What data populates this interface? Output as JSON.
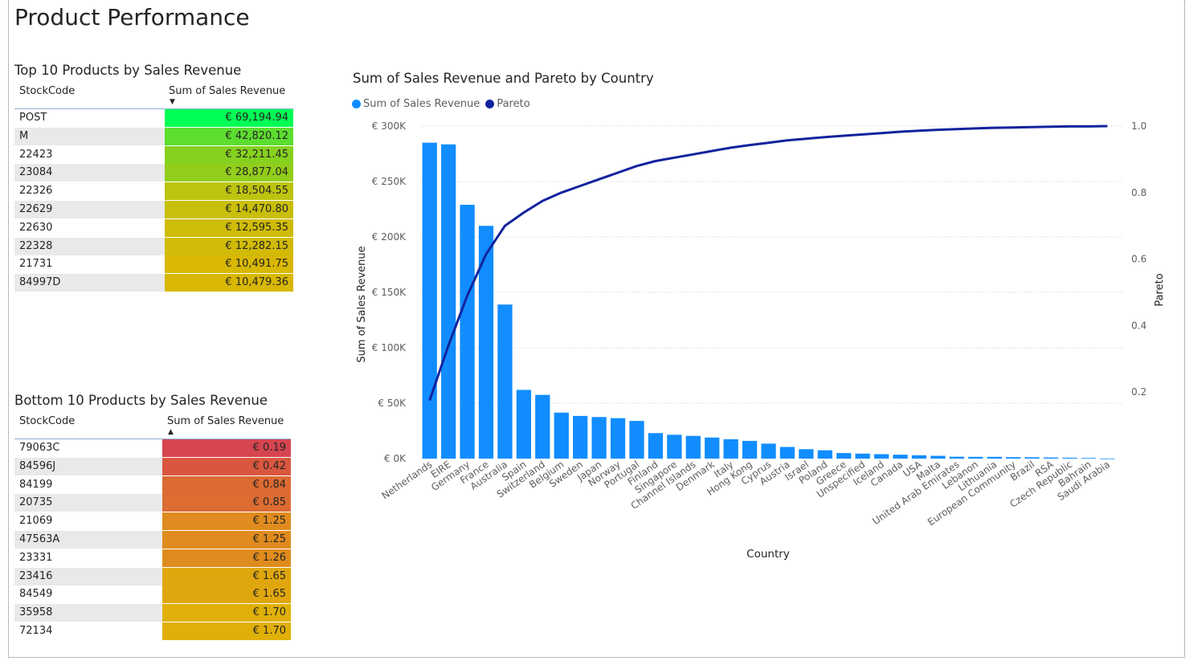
{
  "page": {
    "title": "Product Performance"
  },
  "top_table": {
    "title": "Top 10 Products by Sales Revenue",
    "col1": "StockCode",
    "col2": "Sum of Sales Revenue",
    "sort": "descending",
    "rows": [
      {
        "code": "POST",
        "value": "€ 69,194.94",
        "color": "#00ff55"
      },
      {
        "code": "M",
        "value": "€ 42,820.12",
        "color": "#5cdd2f"
      },
      {
        "code": "22423",
        "value": "€ 32,211.45",
        "color": "#86d11f"
      },
      {
        "code": "23084",
        "value": "€ 28,877.04",
        "color": "#93cd1b"
      },
      {
        "code": "22326",
        "value": "€ 18,504.55",
        "color": "#bcc40f"
      },
      {
        "code": "22629",
        "value": "€ 14,470.80",
        "color": "#c9bf0a"
      },
      {
        "code": "22630",
        "value": "€ 12,595.35",
        "color": "#cfbc08"
      },
      {
        "code": "22328",
        "value": "€ 12,282.15",
        "color": "#d1bb07"
      },
      {
        "code": "21731",
        "value": "€ 10,491.75",
        "color": "#d8b804"
      },
      {
        "code": "84997D",
        "value": "€ 10,479.36",
        "color": "#d8b804"
      }
    ]
  },
  "bottom_table": {
    "title": "Bottom 10 Products by Sales Revenue",
    "col1": "StockCode",
    "col2": "Sum of Sales Revenue",
    "sort": "ascending",
    "rows": [
      {
        "code": "79063C",
        "value": "€ 0.19",
        "color": "#d64550"
      },
      {
        "code": "84596J",
        "value": "€ 0.42",
        "color": "#d9573f"
      },
      {
        "code": "84199",
        "value": "€ 0.84",
        "color": "#dc6a32"
      },
      {
        "code": "20735",
        "value": "€ 0.85",
        "color": "#dc6c31"
      },
      {
        "code": "21069",
        "value": "€ 1.25",
        "color": "#df8b1f"
      },
      {
        "code": "47563A",
        "value": "€ 1.25",
        "color": "#df8b1f"
      },
      {
        "code": "23331",
        "value": "€ 1.26",
        "color": "#df8c1e"
      },
      {
        "code": "23416",
        "value": "€ 1.65",
        "color": "#e0a60e"
      },
      {
        "code": "84549",
        "value": "€ 1.65",
        "color": "#e0a60e"
      },
      {
        "code": "35958",
        "value": "€ 1.70",
        "color": "#e0b008"
      },
      {
        "code": "72134",
        "value": "€ 1.70",
        "color": "#e0b008"
      }
    ]
  },
  "chart_data": {
    "type": "bar",
    "title": "Sum of Sales Revenue and Pareto by Country",
    "xlabel": "Country",
    "ylabel": "Sum of Sales Revenue",
    "y2label": "Pareto",
    "legend": [
      "Sum of Sales Revenue",
      "Pareto"
    ],
    "legend_position": "top-left",
    "grid": true,
    "colors": {
      "bars": "#118dff",
      "line": "#12239e"
    },
    "ylim": [
      0,
      300000
    ],
    "y2lim": [
      0,
      1.0
    ],
    "yticks": [
      "€ 0K",
      "€ 50K",
      "€ 100K",
      "€ 150K",
      "€ 200K",
      "€ 250K",
      "€ 300K"
    ],
    "yticks_values": [
      0,
      50000,
      100000,
      150000,
      200000,
      250000,
      300000
    ],
    "y2ticks": [
      "0.2",
      "0.4",
      "0.6",
      "0.8",
      "1.0"
    ],
    "y2ticks_values": [
      0.2,
      0.4,
      0.6,
      0.8,
      1.0
    ],
    "categories": [
      "Netherlands",
      "EIRE",
      "Germany",
      "France",
      "Australia",
      "Spain",
      "Switzerland",
      "Belgium",
      "Sweden",
      "Japan",
      "Norway",
      "Portugal",
      "Finland",
      "Singapore",
      "Channel Islands",
      "Denmark",
      "Italy",
      "Hong Kong",
      "Cyprus",
      "Austria",
      "Israel",
      "Poland",
      "Greece",
      "Unspecified",
      "Iceland",
      "Canada",
      "USA",
      "Malta",
      "United Arab Emirates",
      "Lebanon",
      "Lithuania",
      "European Community",
      "Brazil",
      "RSA",
      "Czech Republic",
      "Bahrain",
      "Saudi Arabia"
    ],
    "series": [
      {
        "name": "Sum of Sales Revenue",
        "type": "bar",
        "values": [
          285000,
          283500,
          229000,
          210000,
          139000,
          62000,
          57500,
          41500,
          38500,
          37500,
          36500,
          34000,
          23000,
          21500,
          20500,
          19000,
          17500,
          16000,
          13500,
          10500,
          8500,
          7500,
          5000,
          4500,
          4000,
          3500,
          3000,
          2500,
          1700,
          1600,
          1600,
          1300,
          1200,
          1000,
          800,
          600,
          150
        ]
      },
      {
        "name": "Pareto",
        "type": "line",
        "values": [
          0.175,
          0.34,
          0.49,
          0.615,
          0.7,
          0.74,
          0.775,
          0.8,
          0.82,
          0.84,
          0.86,
          0.88,
          0.895,
          0.905,
          0.915,
          0.925,
          0.935,
          0.943,
          0.95,
          0.957,
          0.962,
          0.967,
          0.971,
          0.975,
          0.979,
          0.983,
          0.986,
          0.989,
          0.991,
          0.993,
          0.995,
          0.996,
          0.997,
          0.998,
          0.999,
          0.999,
          1.0
        ]
      }
    ]
  }
}
